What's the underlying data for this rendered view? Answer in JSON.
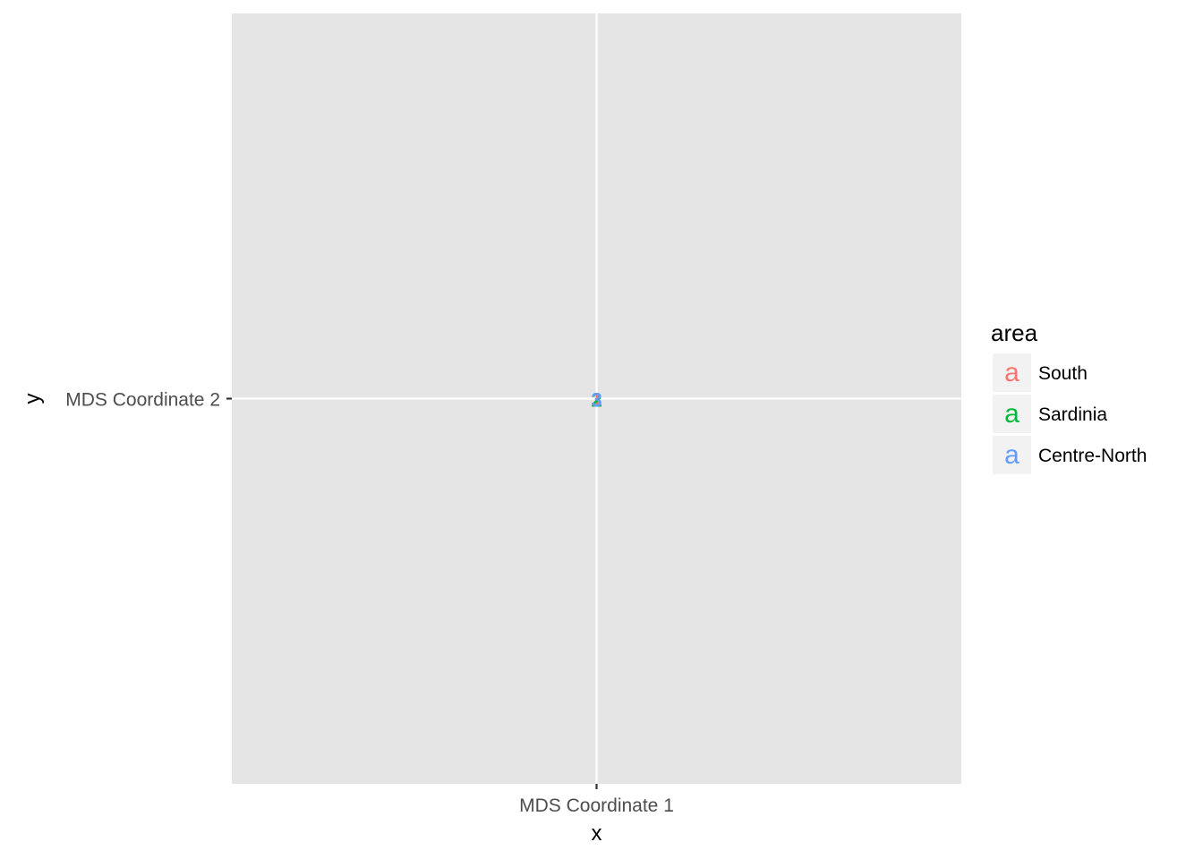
{
  "chart_data": {
    "type": "scatter",
    "xlabel": "x",
    "ylabel": "y",
    "x_tick_labels": [
      "MDS Coordinate 1"
    ],
    "y_tick_labels": [
      "MDS Coordinate 2"
    ],
    "xlim": [
      0,
      1
    ],
    "ylim": [
      0,
      1
    ],
    "grid": true,
    "panel_background": "#e5e5e5",
    "grid_color": "#ffffff",
    "legend": {
      "title": "area",
      "placement": "right",
      "glyph": "a",
      "entries": [
        {
          "name": "South",
          "color": "#f8766d"
        },
        {
          "name": "Sardinia",
          "color": "#00ba38"
        },
        {
          "name": "Centre-North",
          "color": "#619cff"
        }
      ]
    },
    "series": [
      {
        "name": "South",
        "color": "#f8766d",
        "points": [
          {
            "x": 0.5,
            "y": 0.5,
            "label": "1"
          }
        ]
      },
      {
        "name": "Sardinia",
        "color": "#00ba38",
        "points": [
          {
            "x": 0.5,
            "y": 0.5,
            "label": "2"
          }
        ]
      },
      {
        "name": "Centre-North",
        "color": "#619cff",
        "points": [
          {
            "x": 0.5,
            "y": 0.5,
            "label": "3"
          }
        ]
      }
    ]
  }
}
